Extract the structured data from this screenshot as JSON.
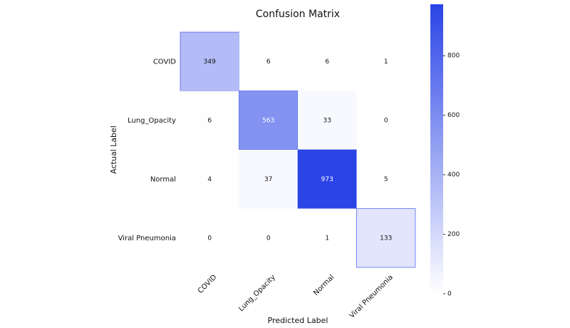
{
  "chart_data": {
    "type": "heatmap",
    "title": "Confusion Matrix",
    "x_label": "Predicted Label",
    "y_label": "Actual Label",
    "x_categories": [
      "COVID",
      "Lung_Opacity",
      "Normal",
      "Viral Pneumonia"
    ],
    "y_categories": [
      "COVID",
      "Lung_Opacity",
      "Normal",
      "Viral Pneumonia"
    ],
    "values": [
      [
        349,
        6,
        6,
        1
      ],
      [
        6,
        563,
        33,
        0
      ],
      [
        4,
        37,
        973,
        5
      ],
      [
        0,
        0,
        1,
        133
      ]
    ],
    "cmap": [
      "#ffffff",
      "#2a44e6"
    ],
    "clim": [
      0,
      973
    ],
    "cticks": [
      0,
      200,
      400,
      600,
      800
    ]
  }
}
